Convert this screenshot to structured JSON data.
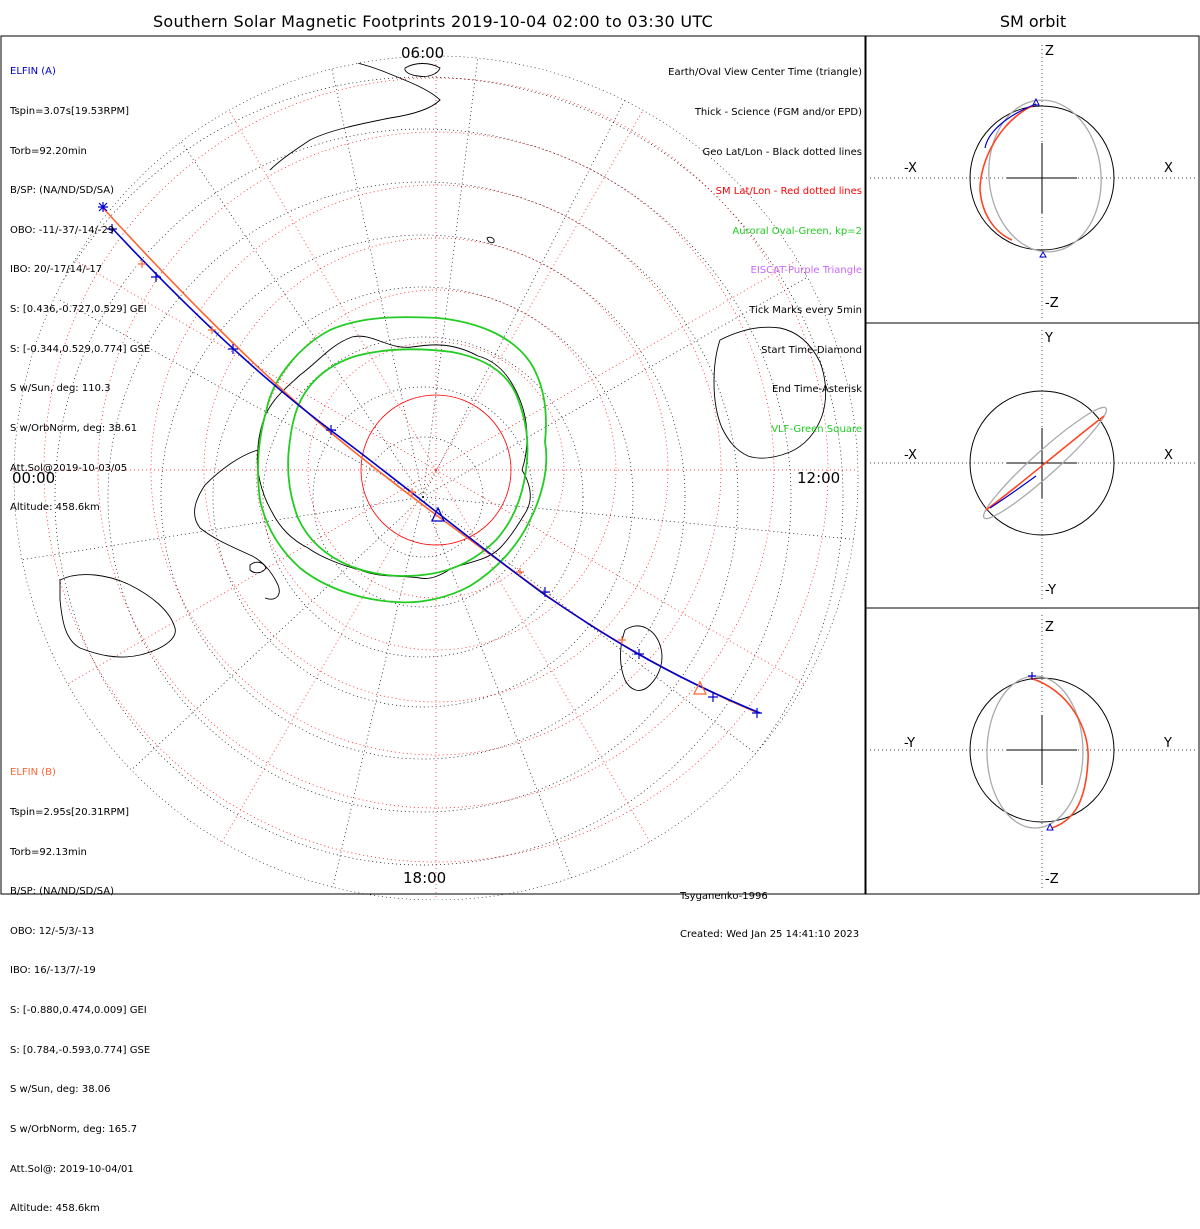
{
  "title": "Southern Solar Magnetic Footprints 2019-10-04 02:00 to 03:30 UTC",
  "orbit_title": "SM orbit",
  "mlt_labels": {
    "top": "06:00",
    "left": "00:00",
    "right": "12:00",
    "bottom": "18:00"
  },
  "elfin_a": {
    "header": "ELFIN (A)",
    "lines": [
      "Tspin=3.07s[19.53RPM]",
      "Torb=92.20min",
      "B/SP: (NA/ND/SD/SA)",
      "OBO: -11/-37/-14/-29",
      "IBO: 20/-17/14/-17",
      "S: [0.436,-0.727,0.529] GEI",
      "S: [-0.344,0.529,0.774] GSE",
      "S w/Sun, deg: 110.3",
      "S w/OrbNorm, deg: 38.61",
      "Att.Sol@2019-10-03/05",
      "Altitude: 458.6km"
    ]
  },
  "elfin_b": {
    "header": "ELFIN (B)",
    "lines": [
      "Tspin=2.95s[20.31RPM]",
      "Torb=92.13min",
      "B/SP: (NA/ND/SD/SA)",
      "OBO: 12/-5/3/-13",
      "IBO: 16/-13/7/-19",
      "S: [-0.880,0.474,0.009] GEI",
      "S: [0.784,-0.593,0.774] GSE",
      "S w/Sun, deg: 38.06",
      "S w/OrbNorm, deg: 165.7",
      "Att.Sol@: 2019-10-04/01",
      "Altitude: 458.6km"
    ]
  },
  "legend": [
    {
      "text": "Earth/Oval View Center Time (triangle)",
      "color": "#000000"
    },
    {
      "text": "Thick - Science (FGM and/or EPD)",
      "color": "#000000"
    },
    {
      "text": "Geo Lat/Lon - Black dotted lines",
      "color": "#000000"
    },
    {
      "text": "SM Lat/Lon - Red dotted lines",
      "color": "#ff0000"
    },
    {
      "text": "Auroral Oval-Green, kp=2",
      "color": "#22cc22"
    },
    {
      "text": "EISCAT-Purple Triangle",
      "color": "#cc66ff"
    },
    {
      "text": "Tick Marks every 5min",
      "color": "#000000"
    },
    {
      "text": "Start Time-Diamond",
      "color": "#000000"
    },
    {
      "text": "End Time-Asterisk",
      "color": "#000000"
    },
    {
      "text": "VLF-Green Square",
      "color": "#22cc22"
    }
  ],
  "credit": {
    "model": "Tsyganenko-1996",
    "created": "Created: Wed Jan 25 14:41:10 2023"
  },
  "orbit_panels": [
    {
      "top": "Z",
      "bottom": "-Z",
      "left": "-X",
      "right": "X"
    },
    {
      "top": "Y",
      "bottom": "-Y",
      "left": "-X",
      "right": "X"
    },
    {
      "top": "Z",
      "bottom": "-Z",
      "left": "-Y",
      "right": "Y"
    }
  ],
  "colors": {
    "elfin_a": "#0000cc",
    "elfin_b": "#ff6633",
    "sm_grid": "#ff0000",
    "oval": "#22cc22",
    "orbit_other": "#aaaaaa"
  }
}
